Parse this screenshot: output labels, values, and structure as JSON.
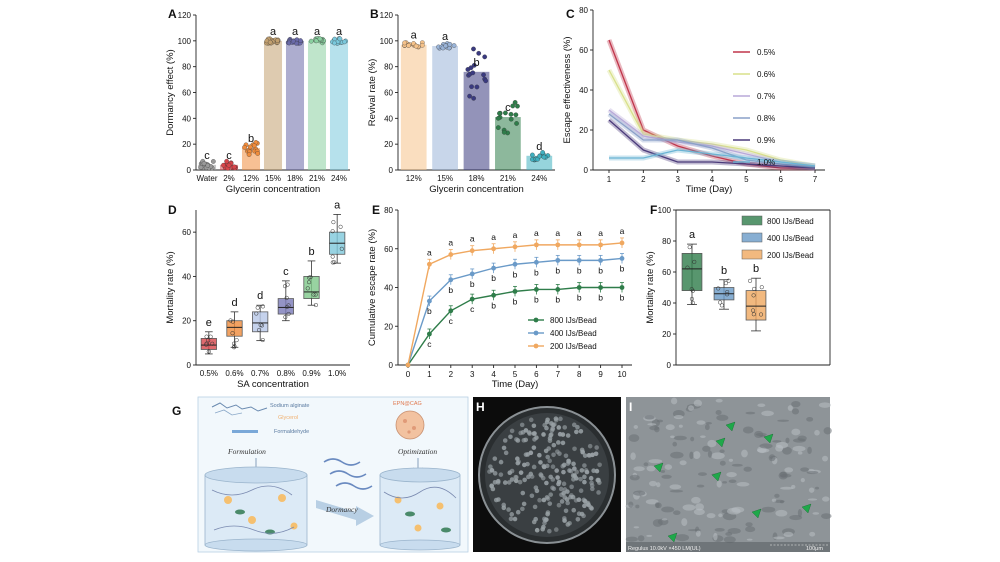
{
  "colors": {
    "glyc": [
      "#9a9a9a",
      "#d8454a",
      "#f08c3c",
      "#f5c28a",
      "#b7c8e8",
      "#4a4a8a",
      "#2f7d4a",
      "#3fb0c0"
    ],
    "bars": [
      "#f5c28a",
      "#b7c8e8",
      "#4a4a8a",
      "#2f7d4a",
      "#3fb0c0"
    ],
    "sa": [
      "#d8454a",
      "#f08c3c",
      "#b7c8e8",
      "#7a7ab8",
      "#7fc98a",
      "#7fc9dc"
    ],
    "escape": [
      "#c0354a",
      "#d8e08a",
      "#b8a8d8",
      "#8aa0c8",
      "#4a3a7a",
      "#6ab4d4"
    ],
    "bead": [
      "#2f7d4a",
      "#6a9ac8",
      "#f0a860"
    ]
  },
  "chart_data": [
    {
      "id": "A",
      "type": "bar",
      "panel_label": "A",
      "categories": [
        "Water",
        "2%",
        "12%",
        "15%",
        "18%",
        "21%",
        "24%"
      ],
      "values": [
        4,
        4,
        17,
        100,
        100,
        100,
        100
      ],
      "sig_labels": [
        "c",
        "c",
        "b",
        "a",
        "a",
        "a",
        "a"
      ],
      "xlabel": "Glycerin concentration",
      "ylabel": "Dormancy effect (%)",
      "ylim": [
        0,
        120
      ],
      "yticks": [
        0,
        20,
        40,
        60,
        80,
        100,
        120
      ]
    },
    {
      "id": "B",
      "type": "bar",
      "panel_label": "B",
      "categories": [
        "12%",
        "15%",
        "18%",
        "21%",
        "24%"
      ],
      "values": [
        97,
        96,
        76,
        41,
        11
      ],
      "sig_labels": [
        "a",
        "a",
        "b",
        "c",
        "d"
      ],
      "xlabel": "Glycerin concentration",
      "ylabel": "Revival rate (%)",
      "ylim": [
        0,
        120
      ],
      "yticks": [
        0,
        20,
        40,
        60,
        80,
        100,
        120
      ]
    },
    {
      "id": "C",
      "type": "line",
      "panel_label": "C",
      "x": [
        1,
        2,
        3,
        4,
        5,
        6,
        7
      ],
      "series": [
        {
          "name": "0.5%",
          "values": [
            65,
            20,
            12,
            7,
            3,
            1,
            1
          ]
        },
        {
          "name": "0.6%",
          "values": [
            50,
            18,
            15,
            13,
            10,
            5,
            2
          ]
        },
        {
          "name": "0.7%",
          "values": [
            30,
            17,
            14,
            12,
            8,
            4,
            2
          ]
        },
        {
          "name": "0.8%",
          "values": [
            28,
            15,
            15,
            11,
            5,
            3,
            1
          ]
        },
        {
          "name": "0.9%",
          "values": [
            25,
            10,
            4,
            4,
            3,
            2,
            1
          ]
        },
        {
          "name": "1.0%",
          "values": [
            6,
            6,
            10,
            8,
            6,
            4,
            2
          ]
        }
      ],
      "xlabel": "Time (Day)",
      "ylabel": "Escape effectiveness (%)",
      "ylim": [
        0,
        80
      ],
      "yticks": [
        0,
        20,
        40,
        60,
        80
      ],
      "xticks": [
        "1",
        "2",
        "3",
        "4",
        "5",
        "6",
        "7"
      ]
    },
    {
      "id": "D",
      "type": "box",
      "panel_label": "D",
      "categories": [
        "0.5%",
        "0.6%",
        "0.7%",
        "0.8%",
        "0.9%",
        "1.0%"
      ],
      "boxes": [
        {
          "min": 5,
          "q1": 7,
          "median": 9,
          "q3": 12,
          "max": 15
        },
        {
          "min": 8,
          "q1": 13,
          "median": 17,
          "q3": 20,
          "max": 24
        },
        {
          "min": 11,
          "q1": 15,
          "median": 19,
          "q3": 24,
          "max": 27
        },
        {
          "min": 20,
          "q1": 23,
          "median": 26,
          "q3": 30,
          "max": 38
        },
        {
          "min": 27,
          "q1": 30,
          "median": 33,
          "q3": 40,
          "max": 47
        },
        {
          "min": 46,
          "q1": 50,
          "median": 55,
          "q3": 60,
          "max": 68
        }
      ],
      "sig_labels": [
        "e",
        "d",
        "d",
        "c",
        "b",
        "a"
      ],
      "xlabel": "SA concentration",
      "ylabel": "Mortality rate (%)",
      "ylim": [
        0,
        70
      ],
      "yticks": [
        0,
        20,
        40,
        60
      ]
    },
    {
      "id": "E",
      "type": "line",
      "panel_label": "E",
      "x": [
        0,
        1,
        2,
        3,
        4,
        5,
        6,
        7,
        8,
        9,
        10
      ],
      "series": [
        {
          "name": "800 IJs/Bead",
          "values": [
            0,
            16,
            28,
            34,
            36,
            38,
            39,
            39,
            40,
            40,
            40
          ],
          "sig": [
            "",
            "c",
            "c",
            "c",
            "b",
            "b",
            "b",
            "b",
            "b",
            "b",
            "b"
          ]
        },
        {
          "name": "400 IJs/Bead",
          "values": [
            0,
            33,
            44,
            47,
            50,
            52,
            53,
            54,
            54,
            54,
            55
          ],
          "sig": [
            "",
            "b",
            "b",
            "b",
            "b",
            "b",
            "b",
            "b",
            "b",
            "b",
            "b"
          ]
        },
        {
          "name": "200 IJs/Bead",
          "values": [
            0,
            52,
            57,
            59,
            60,
            61,
            62,
            62,
            62,
            62,
            63
          ],
          "sig": [
            "",
            "a",
            "a",
            "a",
            "a",
            "a",
            "a",
            "a",
            "a",
            "a",
            "a"
          ]
        }
      ],
      "xlabel": "Time (Day)",
      "ylabel": "Cumulative escape rate (%)",
      "ylim": [
        0,
        80
      ],
      "yticks": [
        0,
        20,
        40,
        60,
        80
      ],
      "xticks": [
        "0",
        "1",
        "2",
        "3",
        "4",
        "5",
        "6",
        "7",
        "8",
        "9",
        "10"
      ]
    },
    {
      "id": "F",
      "type": "box",
      "panel_label": "F",
      "categories": [
        "800 IJs/Bead",
        "400 IJs/Bead",
        "200 IJs/Bead"
      ],
      "boxes": [
        {
          "min": 39,
          "q1": 48,
          "median": 62,
          "q3": 72,
          "max": 78
        },
        {
          "min": 36,
          "q1": 42,
          "median": 46,
          "q3": 50,
          "max": 55
        },
        {
          "min": 22,
          "q1": 29,
          "median": 38,
          "q3": 48,
          "max": 56
        }
      ],
      "sig_labels": [
        "a",
        "b",
        "b"
      ],
      "ylabel": "Mortality rate (%)",
      "ylim": [
        0,
        100
      ],
      "yticks": [
        0,
        20,
        40,
        60,
        80,
        100
      ]
    }
  ],
  "panel_g": {
    "panel_label": "G",
    "legend_sodium": "Sodium alginate",
    "legend_glycerol": "Glycerol",
    "legend_formaldehyde": "Formaldehyde",
    "step_formulation": "Formulation",
    "step_dormancy": "Dormancy",
    "step_optimization": "Optimization",
    "product_label": "EPN@CAG"
  },
  "panel_h": {
    "panel_label": "H"
  },
  "panel_i": {
    "panel_label": "I",
    "sem_info": "Regulus 10.0kV ×450 LM(UL)",
    "scale_bar": "100μm"
  }
}
